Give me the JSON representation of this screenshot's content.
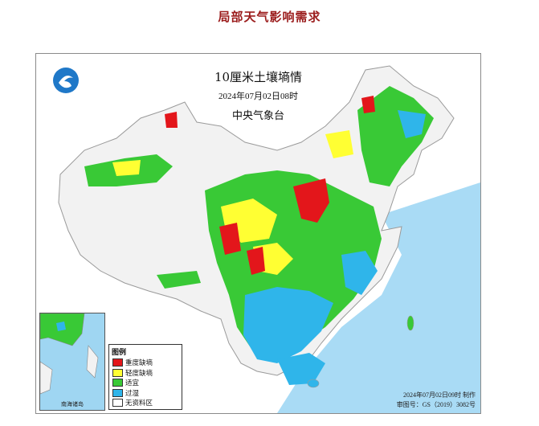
{
  "heading": "局部天气影响需求",
  "map": {
    "title": "10厘米土壤墒情",
    "timestamp": "2024年07月02日08时",
    "agency": "中央气象台",
    "produced": "2024年07月02日09时 制作",
    "review_number": "审图号：GS（2019）3082号",
    "inset_label": "南海诸岛"
  },
  "legend": {
    "title": "图例",
    "items": [
      {
        "label": "重度缺墒",
        "color": "#e3161b"
      },
      {
        "label": "轻度缺墒",
        "color": "#ffff33"
      },
      {
        "label": "适宜",
        "color": "#39c936"
      },
      {
        "label": "过湿",
        "color": "#2fb5ea"
      },
      {
        "label": "无资料区",
        "color": "#ffffff"
      }
    ]
  },
  "colors": {
    "sea": "#a9dbf5",
    "land_nodata": "#f4f4f4",
    "border": "#9a9a9a"
  }
}
